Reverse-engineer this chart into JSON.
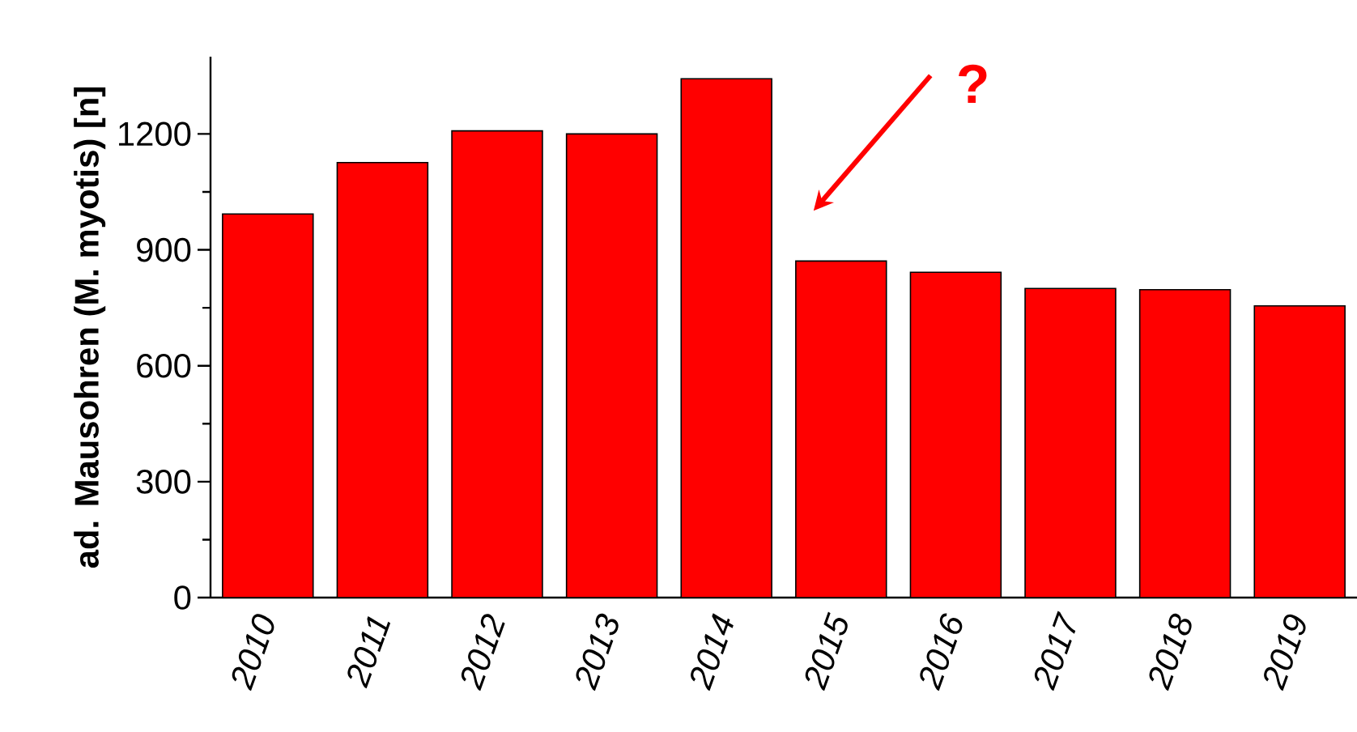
{
  "chart_data": {
    "type": "bar",
    "ylabel": "ad. Mausohren (M. myotis) [n]",
    "categories": [
      "2010",
      "2011",
      "2012",
      "2013",
      "2014",
      "2015",
      "2016",
      "2017",
      "2018",
      "2019"
    ],
    "values": [
      993,
      1126,
      1208,
      1200,
      1343,
      871,
      842,
      800,
      797,
      755
    ],
    "color": "#ff0000",
    "ylim": [
      0,
      1400
    ],
    "yticks": [
      0,
      300,
      600,
      900,
      1200
    ],
    "grid": false,
    "annotations": [
      "?"
    ]
  }
}
